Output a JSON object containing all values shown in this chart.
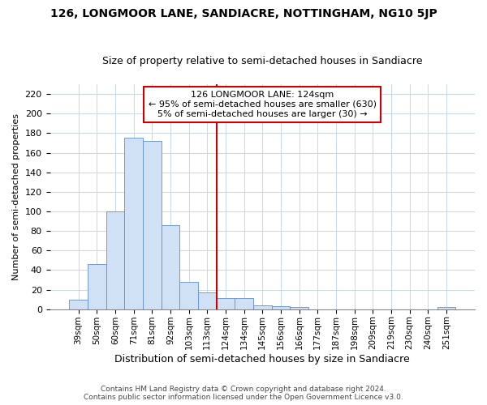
{
  "title": "126, LONGMOOR LANE, SANDIACRE, NOTTINGHAM, NG10 5JP",
  "subtitle": "Size of property relative to semi-detached houses in Sandiacre",
  "xlabel": "Distribution of semi-detached houses by size in Sandiacre",
  "ylabel": "Number of semi-detached properties",
  "categories": [
    "39sqm",
    "50sqm",
    "60sqm",
    "71sqm",
    "81sqm",
    "92sqm",
    "103sqm",
    "113sqm",
    "124sqm",
    "134sqm",
    "145sqm",
    "156sqm",
    "166sqm",
    "177sqm",
    "187sqm",
    "198sqm",
    "209sqm",
    "219sqm",
    "230sqm",
    "240sqm",
    "251sqm"
  ],
  "values": [
    10,
    46,
    100,
    175,
    172,
    86,
    28,
    17,
    11,
    11,
    4,
    3,
    2,
    0,
    0,
    0,
    0,
    0,
    0,
    0,
    2
  ],
  "bar_color": "#d0e0f5",
  "bar_edge_color": "#6090c8",
  "vline_color": "#cc0000",
  "vline_index": 8,
  "annotation_title": "126 LONGMOOR LANE: 124sqm",
  "annotation_line1": "← 95% of semi-detached houses are smaller (630)",
  "annotation_line2": "5% of semi-detached houses are larger (30) →",
  "annotation_box_color": "#cc0000",
  "footer1": "Contains HM Land Registry data © Crown copyright and database right 2024.",
  "footer2": "Contains public sector information licensed under the Open Government Licence v3.0.",
  "ylim": [
    0,
    230
  ],
  "yticks": [
    0,
    20,
    40,
    60,
    80,
    100,
    120,
    140,
    160,
    180,
    200,
    220
  ],
  "background_color": "#ffffff",
  "plot_bg_color": "#ffffff",
  "title_fontsize": 10,
  "subtitle_fontsize": 9,
  "ylabel_fontsize": 8,
  "xlabel_fontsize": 9
}
